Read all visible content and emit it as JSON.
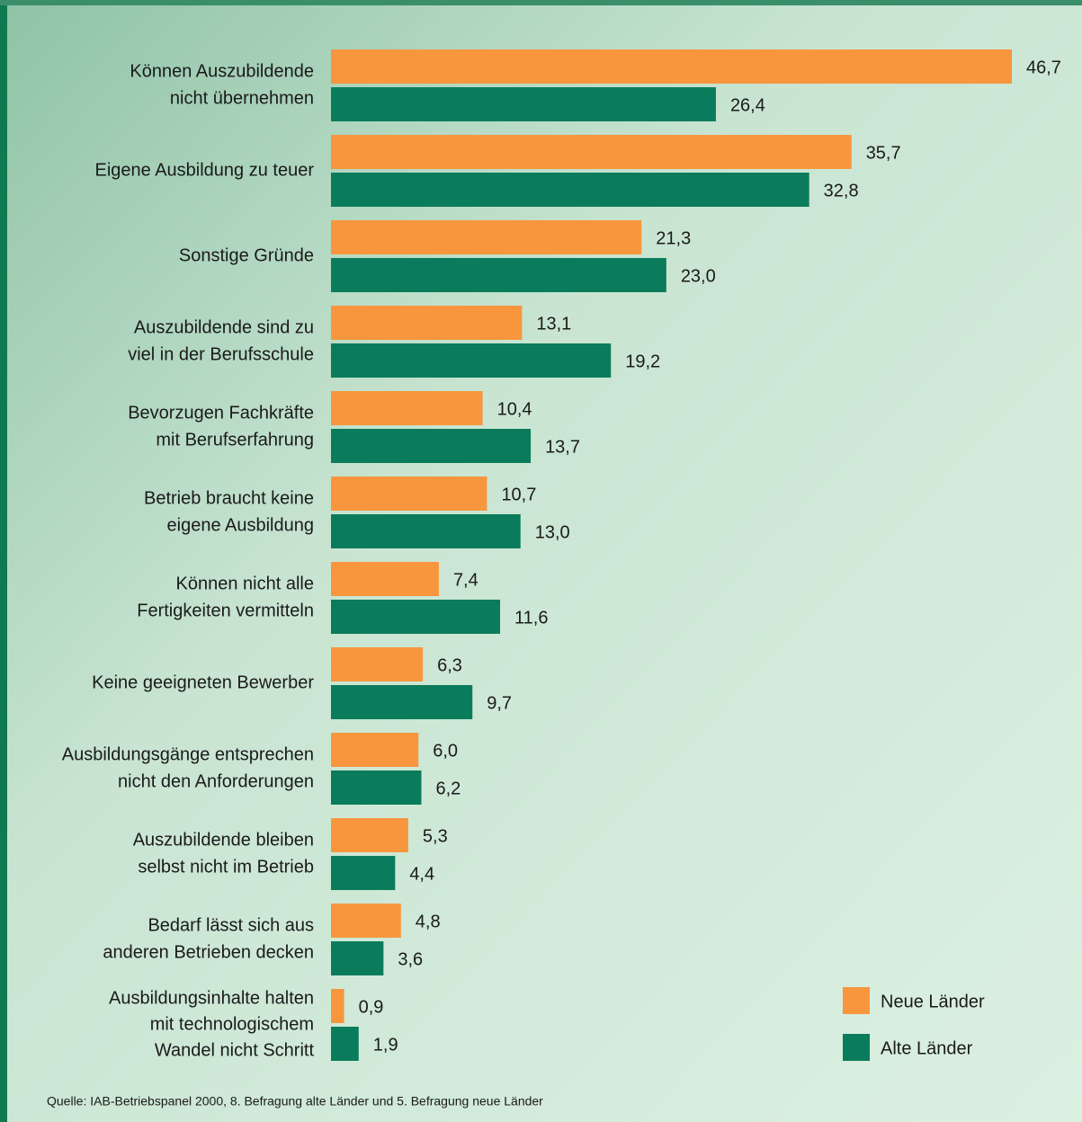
{
  "chart_data": {
    "type": "bar",
    "orientation": "horizontal",
    "categories": [
      [
        "Können Auszubildende",
        "nicht übernehmen"
      ],
      [
        "Eigene Ausbildung zu teuer"
      ],
      [
        "Sonstige Gründe"
      ],
      [
        "Auszubildende sind zu",
        "viel in der Berufsschule"
      ],
      [
        "Bevorzugen Fachkräfte",
        "mit Berufserfahrung"
      ],
      [
        "Betrieb braucht keine",
        "eigene Ausbildung"
      ],
      [
        "Können nicht alle",
        "Fertigkeiten vermitteln"
      ],
      [
        "Keine geeigneten Bewerber"
      ],
      [
        "Ausbildungsgänge entsprechen",
        "nicht den Anforderungen"
      ],
      [
        "Auszubildende bleiben",
        "selbst nicht im Betrieb"
      ],
      [
        "Bedarf lässt sich aus",
        "anderen Betrieben decken"
      ],
      [
        "Ausbildungsinhalte halten",
        "mit technologischem",
        "Wandel nicht Schritt"
      ]
    ],
    "series": [
      {
        "name": "Neue Länder",
        "color": "#f7963d",
        "values": [
          46.7,
          35.7,
          21.3,
          13.1,
          10.4,
          10.7,
          7.4,
          6.3,
          6.0,
          5.3,
          4.8,
          0.9
        ],
        "value_labels": [
          "46,7",
          "35,7",
          "21,3",
          "13,1",
          "10,4",
          "10,7",
          "7,4",
          "6,3",
          "6,0",
          "5,3",
          "4,8",
          "0,9"
        ]
      },
      {
        "name": "Alte Länder",
        "color": "#0b7c5b",
        "values": [
          26.4,
          32.8,
          23.0,
          19.2,
          13.7,
          13.0,
          11.6,
          9.7,
          6.2,
          4.4,
          3.6,
          1.9
        ],
        "value_labels": [
          "26,4",
          "32,8",
          "23,0",
          "19,2",
          "13,7",
          "13,0",
          "11,6",
          "9,7",
          "6,2",
          "4,4",
          "3,6",
          "1,9"
        ]
      }
    ],
    "legend": "bottom-right",
    "source": "Quelle: IAB-Betriebspanel 2000, 8. Befragung alte Länder und 5. Befragung neue Länder"
  }
}
